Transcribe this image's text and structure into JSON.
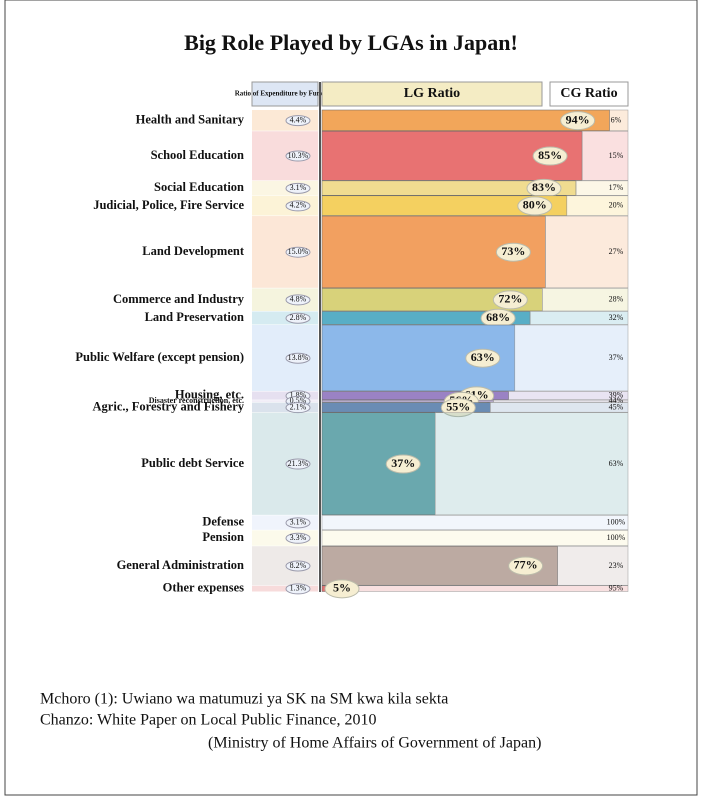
{
  "chart_data": {
    "type": "mekko",
    "title": "Big Role Played by LGAs in Japan!",
    "width_axis_label": "Ratio of Expenditure by Function",
    "categories": [
      "Health and Sanitary",
      "School Education",
      "Social Education",
      "Judicial, Police, Fire Service",
      "Land Development",
      "Commerce and Industry",
      "Land Preservation",
      "Public Welfare (except pension)",
      "Housing, etc.",
      "Disaster reconstruction, etc.",
      "Agric., Forestry and Fishery",
      "Public debt Service",
      "Defense",
      "Pension",
      "General Administration",
      "Other expenses"
    ],
    "widths": [
      4.4,
      10.3,
      3.1,
      4.2,
      15.0,
      4.8,
      2.8,
      13.8,
      1.8,
      0.5,
      2.1,
      21.3,
      3.1,
      3.3,
      8.2,
      1.3
    ],
    "width_labels": [
      "4.4%",
      "10.3%",
      "3.1%",
      "4.2%",
      "15.0%",
      "4.8%",
      "2.8%",
      "13.8%",
      "1.8%",
      "0.5%",
      "2.1%",
      "21.3%",
      "3.1%",
      "3.3%",
      "8.2%",
      "1.3%"
    ],
    "colors": [
      "#f2a65a",
      "#e87272",
      "#f0dc90",
      "#f4d060",
      "#f2a060",
      "#d8d27a",
      "#58aec6",
      "#8cb8ea",
      "#9a82c4",
      "#c8b8e0",
      "#6a8cb4",
      "#6aa8ae",
      "#c4d4f2",
      "#f4ecb0",
      "#bcaaa2",
      "#e07070"
    ],
    "xlim": [
      0,
      100
    ],
    "series": [
      {
        "name": "LG Ratio",
        "values": [
          94,
          85,
          83,
          80,
          73,
          72,
          68,
          63,
          61,
          56,
          55,
          37,
          0,
          0,
          77,
          5
        ],
        "value_labels": [
          "94%",
          "85%",
          "83%",
          "80%",
          "73%",
          "72%",
          "68%",
          "63%",
          "61%",
          "56%",
          "55%",
          "37%",
          null,
          null,
          "77%",
          "5%"
        ]
      },
      {
        "name": "CG Ratio",
        "values": [
          6,
          15,
          17,
          20,
          27,
          28,
          32,
          37,
          39,
          44,
          45,
          63,
          100,
          100,
          23,
          95
        ],
        "value_labels": [
          "6%",
          "15%",
          "17%",
          "20%",
          "27%",
          "28%",
          "32%",
          "37%",
          "39%",
          "44%",
          "45%",
          "63%",
          "100%",
          "100%",
          "23%",
          "95%"
        ]
      }
    ]
  },
  "caption": [
    "Mchoro (1): Uwiano wa matumuzi ya SK na SM kwa kila sekta",
    "Chanzo: White Paper on Local Public Finance, 2010",
    "(Ministry of Home Affairs of Government of Japan)"
  ]
}
